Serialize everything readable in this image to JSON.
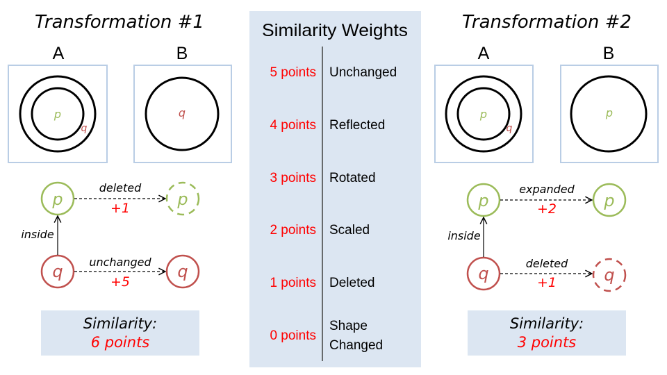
{
  "colors": {
    "panel_bg": "#dce6f2",
    "box_border": "#b9cde5",
    "green": "#9bbb59",
    "red": "#c0504d",
    "red_text": "#ff0000",
    "black": "#000000"
  },
  "left": {
    "title": "Transformation #1",
    "label_a": "A",
    "label_b": "B",
    "box_a": {
      "p": "p",
      "q": "q"
    },
    "box_b": {
      "q": "q"
    },
    "graph": {
      "p_src": "p",
      "p_dst": "p",
      "q_src": "q",
      "q_dst": "q",
      "p_edge_label": "deleted",
      "p_edge_points": "+1",
      "q_edge_label": "unchanged",
      "q_edge_points": "+5",
      "relation": "inside"
    },
    "similarity_label": "Similarity:",
    "similarity_value": "6 points"
  },
  "weights": {
    "title": "Similarity Weights",
    "rows": [
      {
        "points": "5 points",
        "name": "Unchanged"
      },
      {
        "points": "4 points",
        "name": "Reflected"
      },
      {
        "points": "3 points",
        "name": "Rotated"
      },
      {
        "points": "2 points",
        "name": "Scaled"
      },
      {
        "points": "1 points",
        "name": "Deleted"
      },
      {
        "points": "0 points",
        "name_line1": "Shape",
        "name_line2": "Changed"
      }
    ]
  },
  "right": {
    "title": "Transformation #2",
    "label_a": "A",
    "label_b": "B",
    "box_a": {
      "p": "p",
      "q": "q"
    },
    "box_b": {
      "p": "p"
    },
    "graph": {
      "p_src": "p",
      "p_dst": "p",
      "q_src": "q",
      "q_dst": "q",
      "p_edge_label": "expanded",
      "p_edge_points": "+2",
      "q_edge_label": "deleted",
      "q_edge_points": "+1",
      "relation": "inside"
    },
    "similarity_label": "Similarity:",
    "similarity_value": "3 points"
  }
}
